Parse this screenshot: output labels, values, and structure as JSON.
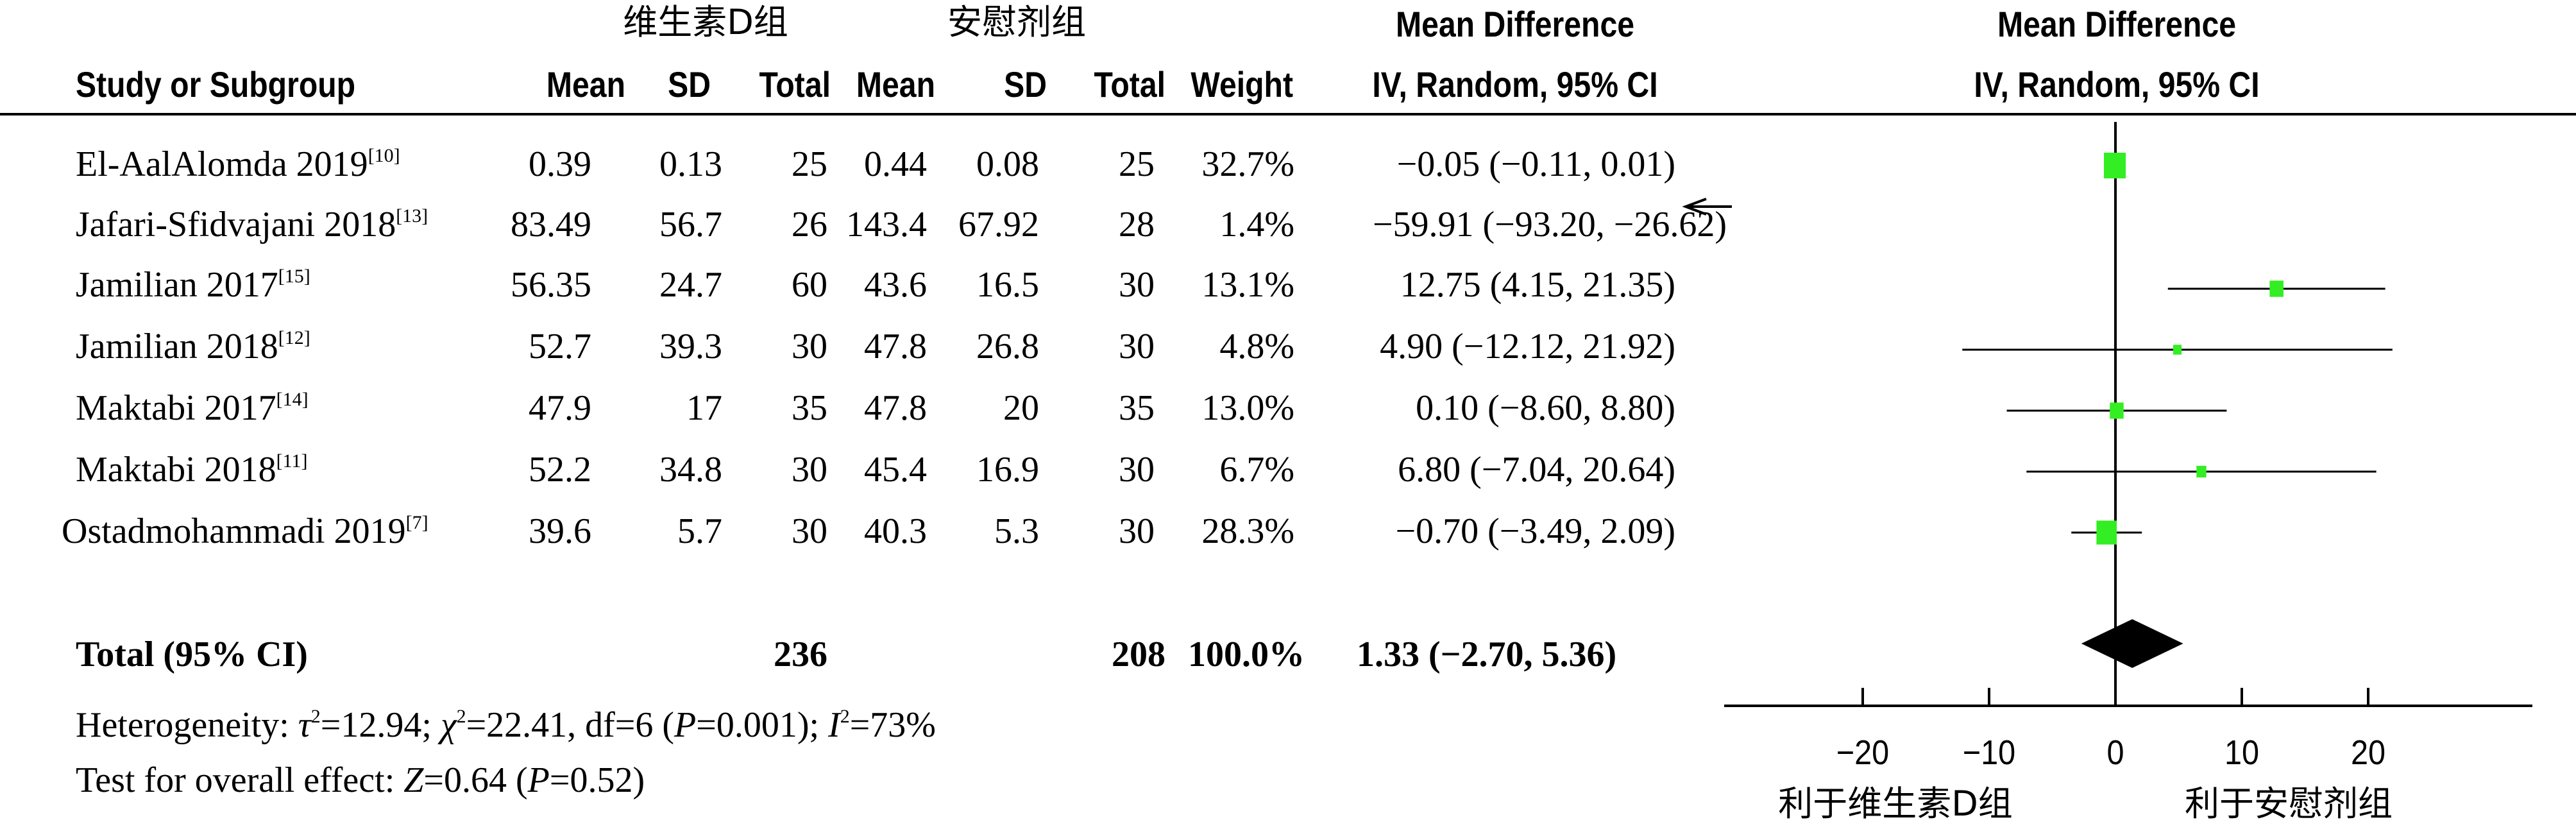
{
  "headers": {
    "group1": "维生素D组",
    "group2": "安慰剂组",
    "md_title": "Mean Difference",
    "md_method": "IV, Random, 95% CI",
    "plot_title": "Mean Difference",
    "plot_method": "IV, Random, 95% CI",
    "study": "Study or Subgroup",
    "mean1": "Mean",
    "sd1": "SD",
    "total1": "Total",
    "mean2": "Mean",
    "sd2": "SD",
    "total2": "Total",
    "weight": "Weight"
  },
  "studies": [
    {
      "name": "El-AalAlomda 2019",
      "ref": "[10]",
      "mean1": "0.39",
      "sd1": "0.13",
      "total1": "25",
      "mean2": "0.44",
      "sd2": "0.08",
      "total2": "25",
      "weight": "32.7%",
      "ci": "−0.05 (−0.11, 0.01)"
    },
    {
      "name": "Jafari-Sfidvajani 2018",
      "ref": "[13]",
      "mean1": "83.49",
      "sd1": "56.7",
      "total1": "26",
      "mean2": "143.4",
      "sd2": "67.92",
      "total2": "28",
      "weight": "1.4%",
      "ci": "−59.91 (−93.20, −26.62)"
    },
    {
      "name": "Jamilian 2017",
      "ref": "[15]",
      "mean1": "56.35",
      "sd1": "24.7",
      "total1": "60",
      "mean2": "43.6",
      "sd2": "16.5",
      "total2": "30",
      "weight": "13.1%",
      "ci": "12.75 (4.15, 21.35)"
    },
    {
      "name": "Jamilian 2018",
      "ref": "[12]",
      "mean1": "52.7",
      "sd1": "39.3",
      "total1": "30",
      "mean2": "47.8",
      "sd2": "26.8",
      "total2": "30",
      "weight": "4.8%",
      "ci": "4.90 (−12.12, 21.92)"
    },
    {
      "name": "Maktabi 2017",
      "ref": "[14]",
      "mean1": "47.9",
      "sd1": "17",
      "total1": "35",
      "mean2": "47.8",
      "sd2": "20",
      "total2": "35",
      "weight": "13.0%",
      "ci": "0.10 (−8.60, 8.80)"
    },
    {
      "name": "Maktabi 2018",
      "ref": "[11]",
      "mean1": "52.2",
      "sd1": "34.8",
      "total1": "30",
      "mean2": "45.4",
      "sd2": "16.9",
      "total2": "30",
      "weight": "6.7%",
      "ci": "6.80 (−7.04, 20.64)"
    },
    {
      "name": "Ostadmohammadi 2019",
      "ref": "[7]",
      "mean1": "39.6",
      "sd1": "5.7",
      "total1": "30",
      "mean2": "40.3",
      "sd2": "5.3",
      "total2": "30",
      "weight": "28.3%",
      "ci": "−0.70 (−3.49, 2.09)"
    }
  ],
  "total": {
    "label": "Total (95% CI)",
    "total1": "236",
    "total2": "208",
    "weight": "100.0%",
    "ci": "1.33 (−2.70, 5.36)"
  },
  "heterogeneity": {
    "label": "Heterogeneity: ",
    "tau_sym": "τ",
    "tau_val": "=12.94; ",
    "chi_sym": "χ",
    "chi_val": "=22.41, df=6 (",
    "p_sym": "P",
    "p_val": "=0.001); ",
    "i_sym": "I",
    "i_val": "=73%",
    "sq": "2"
  },
  "overall": {
    "label": "Test for overall effect: ",
    "z_sym": "Z",
    "z_val": "=0.64 (",
    "p_sym": "P",
    "p_val": "=0.52)"
  },
  "favours": {
    "left": "利于维生素D组",
    "right": "利于安慰剂组"
  },
  "chart_data": {
    "type": "forest",
    "title": "Mean Difference",
    "subtitle": "IV, Random, 95% CI",
    "xlim": [
      -30,
      30
    ],
    "ticks": [
      -20,
      -10,
      0,
      10,
      20
    ],
    "tick_labels": [
      "−20",
      "−10",
      "0",
      "10",
      "20"
    ],
    "studies": [
      {
        "name": "El-AalAlomda 2019",
        "md": -0.05,
        "lo": -0.11,
        "hi": 0.01,
        "weight": 32.7
      },
      {
        "name": "Jafari-Sfidvajani 2018",
        "md": -59.91,
        "lo": -93.2,
        "hi": -26.62,
        "weight": 1.4,
        "shown": false
      },
      {
        "name": "Jamilian 2017",
        "md": 12.75,
        "lo": 4.15,
        "hi": 21.35,
        "weight": 13.1
      },
      {
        "name": "Jamilian 2018",
        "md": 4.9,
        "lo": -12.12,
        "hi": 21.92,
        "weight": 4.8
      },
      {
        "name": "Maktabi 2017",
        "md": 0.1,
        "lo": -8.6,
        "hi": 8.8,
        "weight": 13.0
      },
      {
        "name": "Maktabi 2018",
        "md": 6.8,
        "lo": -7.04,
        "hi": 20.64,
        "weight": 6.7
      },
      {
        "name": "Ostadmohammadi 2019",
        "md": -0.7,
        "lo": -3.49,
        "hi": 2.09,
        "weight": 28.3
      }
    ],
    "overall": {
      "md": 1.33,
      "lo": -2.7,
      "hi": 5.36
    },
    "colors": {
      "marker": "#33ee22",
      "line": "#000000",
      "diamond": "#000000"
    }
  }
}
